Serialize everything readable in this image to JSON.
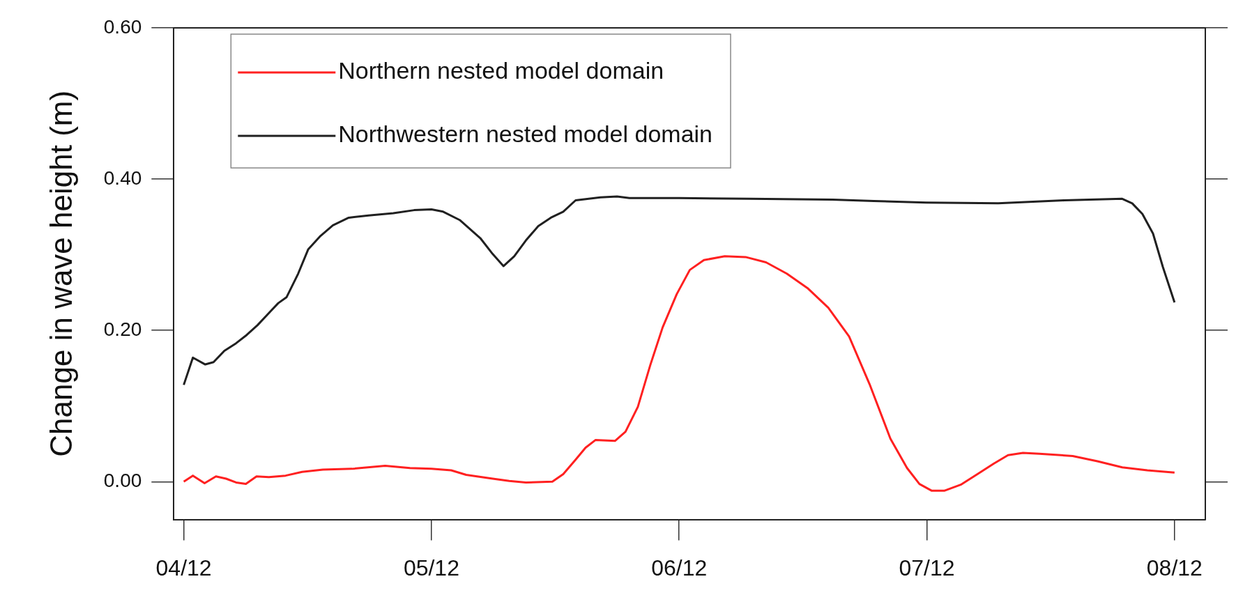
{
  "chart_data": {
    "type": "line",
    "ylabel": "Change in wave height (m)",
    "xlim": [
      "--12-03T23:02",
      "--12-08T02:59"
    ],
    "xticks": [
      {
        "value": "--12-04",
        "label": "04/12"
      },
      {
        "value": "--12-05",
        "label": "05/12"
      },
      {
        "value": "--12-06",
        "label": "06/12"
      },
      {
        "value": "--12-07",
        "label": "07/12"
      },
      {
        "value": "--12-08",
        "label": "08/12"
      }
    ],
    "ylim": [
      -0.05,
      0.6
    ],
    "yticks": [
      {
        "value": 0,
        "label": "0.00"
      },
      {
        "value": 0.2,
        "label": "0.20"
      },
      {
        "value": 0.4,
        "label": "0.40"
      },
      {
        "value": 0.6,
        "label": "0.60"
      }
    ],
    "grid": false,
    "legend": "top left",
    "marker": "none",
    "line_style": "solid",
    "series": [
      {
        "name": "Northern nested model domain",
        "color": "#ff2020",
        "x": [
          "--12-04T00:00",
          "--12-04T00:53",
          "--12-04T02:01",
          "--12-04T03:07",
          "--12-04T04:06",
          "--12-04T05:04",
          "--12-04T06:01",
          "--12-04T07:03",
          "--12-04T08:15",
          "--12-04T09:52",
          "--12-04T11:28",
          "--12-04T13:29",
          "--12-04T16:18",
          "--12-04T19:31",
          "--12-04T21:55",
          "--12-05T00:00",
          "--12-05T01:55",
          "--12-05T03:22",
          "--12-05T05:56",
          "--12-05T07:32",
          "--12-05T09:09",
          "--12-05T11:43",
          "--12-05T12:46",
          "--12-05T13:58",
          "--12-05T14:56",
          "--12-05T15:53",
          "--12-05T17:48",
          "--12-05T18:48",
          "--12-05T20:00",
          "--12-05T21:12",
          "--12-05T22:24",
          "--12-05T23:46",
          "--12-06T01:02",
          "--12-06T02:24",
          "--12-06T04:25",
          "--12-06T06:26",
          "--12-06T08:25",
          "--12-06T10:26",
          "--12-06T12:26",
          "--12-06T14:27",
          "--12-06T16:28",
          "--12-06T18:27",
          "--12-06T20:28",
          "--12-06T22:05",
          "--12-06T23:17",
          "--12-07T00:29",
          "--12-07T01:41",
          "--12-07T03:17",
          "--12-07T04:54",
          "--12-07T06:30",
          "--12-07T07:52",
          "--12-07T09:19",
          "--12-07T10:55",
          "--12-07T14:08",
          "--12-07T16:32",
          "--12-07T18:56",
          "--12-07T21:22",
          "--12-08T00:00"
        ],
        "values": [
          0.0,
          0.008,
          -0.002,
          0.007,
          0.004,
          -0.001,
          -0.003,
          0.007,
          0.006,
          0.008,
          0.013,
          0.016,
          0.017,
          0.021,
          0.018,
          0.017,
          0.015,
          0.009,
          0.004,
          0.001,
          -0.001,
          0.0,
          0.01,
          0.029,
          0.045,
          0.055,
          0.054,
          0.066,
          0.099,
          0.154,
          0.204,
          0.248,
          0.28,
          0.293,
          0.298,
          0.297,
          0.29,
          0.275,
          0.256,
          0.23,
          0.192,
          0.129,
          0.057,
          0.018,
          -0.003,
          -0.012,
          -0.012,
          -0.004,
          0.01,
          0.024,
          0.035,
          0.038,
          0.037,
          0.034,
          0.027,
          0.019,
          0.015,
          0.012
        ]
      },
      {
        "name": "Northwestern nested model domain",
        "color": "#202020",
        "x": [
          "--12-04T00:00",
          "--12-04T00:53",
          "--12-04T02:05",
          "--12-04T02:53",
          "--12-04T03:56",
          "--12-04T05:04",
          "--12-04T06:06",
          "--12-04T07:09",
          "--12-04T08:15",
          "--12-04T09:09",
          "--12-04T09:58",
          "--12-04T11:05",
          "--12-04T12:03",
          "--12-04T13:15",
          "--12-04T14:27",
          "--12-04T15:59",
          "--12-04T17:54",
          "--12-04T20:18",
          "--12-04T22:19",
          "--12-05T00:00",
          "--12-05T01:08",
          "--12-05T02:44",
          "--12-05T04:44",
          "--12-05T05:56",
          "--12-05T06:59",
          "--12-05T08:01",
          "--12-05T09:09",
          "--12-05T10:21",
          "--12-05T11:34",
          "--12-05T12:46",
          "--12-05T13:58",
          "--12-05T16:22",
          "--12-05T17:59",
          "--12-05T19:11",
          "--12-06T00:00",
          "--12-06T06:49",
          "--12-06T14:51",
          "--12-06T18:52",
          "--12-06T23:56",
          "--12-07T06:55",
          "--12-07T13:19",
          "--12-07T18:56",
          "--12-07T19:54",
          "--12-07T20:53",
          "--12-07T21:55",
          "--12-07T22:52",
          "--12-08T00:00"
        ],
        "values": [
          0.128,
          0.164,
          0.155,
          0.158,
          0.173,
          0.183,
          0.194,
          0.207,
          0.223,
          0.236,
          0.244,
          0.275,
          0.307,
          0.325,
          0.339,
          0.349,
          0.352,
          0.355,
          0.359,
          0.36,
          0.357,
          0.346,
          0.322,
          0.301,
          0.285,
          0.298,
          0.319,
          0.338,
          0.349,
          0.357,
          0.372,
          0.376,
          0.377,
          0.375,
          0.375,
          0.374,
          0.373,
          0.371,
          0.369,
          0.368,
          0.372,
          0.374,
          0.368,
          0.354,
          0.328,
          0.284,
          0.237
        ]
      }
    ]
  }
}
